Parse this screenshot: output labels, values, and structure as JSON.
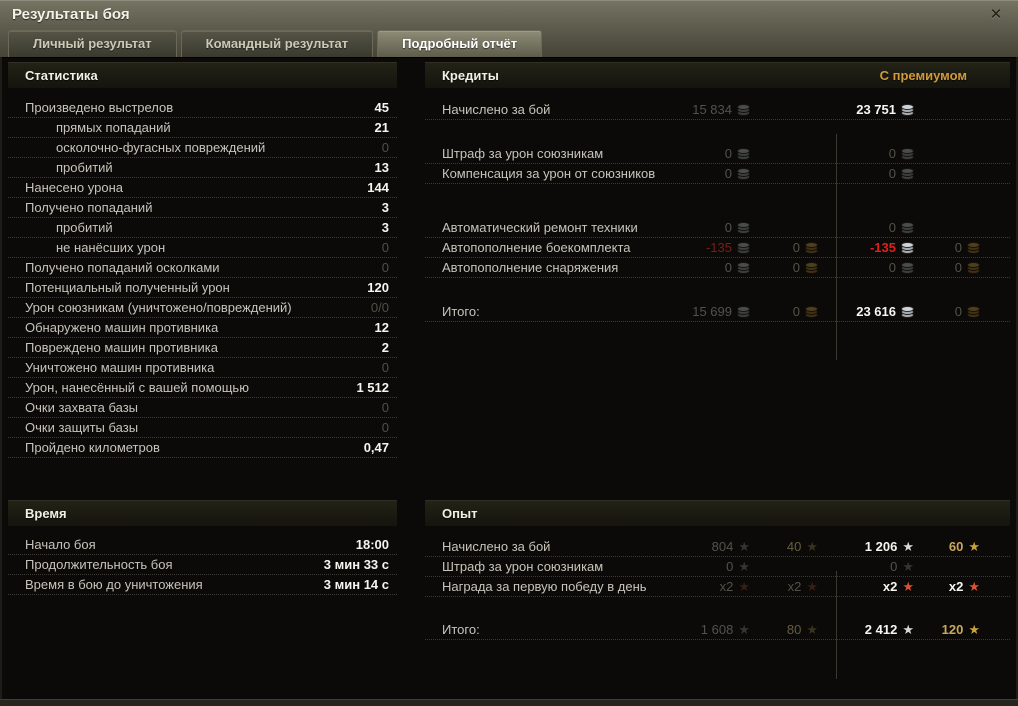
{
  "window": {
    "title": "Результаты боя",
    "close_icon": "✕"
  },
  "tabs": [
    {
      "label": "Личный результат",
      "active": false
    },
    {
      "label": "Командный результат",
      "active": false
    },
    {
      "label": "Подробный отчёт",
      "active": true
    }
  ],
  "colors": {
    "premium_gold": "#d29a3a",
    "negative_red": "#e0211a",
    "credits_silver": "#ced4d7",
    "gold_coin": "#dcae44",
    "free_xp_gold": "#c9a23e",
    "daily_star_red": "#d75432"
  },
  "stats": {
    "title": "Статистика",
    "rows": [
      {
        "label": "Произведено выстрелов",
        "value": "45"
      },
      {
        "label": "прямых попаданий",
        "value": "21"
      },
      {
        "label": "осколочно-фугасных повреждений",
        "value": "0"
      },
      {
        "label": "пробитий",
        "value": "13"
      },
      {
        "label": "Нанесено урона",
        "value": "144"
      },
      {
        "label": "Получено попаданий",
        "value": "3"
      },
      {
        "label": "пробитий",
        "value": "3"
      },
      {
        "label": "не нанёсших урон",
        "value": "0"
      },
      {
        "label": "Получено попаданий осколками",
        "value": "0"
      },
      {
        "label": "Потенциальный полученный урон",
        "value": "120"
      },
      {
        "label": "Урон союзникам (уничтожено/повреждений)",
        "value": "0/0"
      },
      {
        "label": "Обнаружено машин противника",
        "value": "12"
      },
      {
        "label": "Повреждено машин противника",
        "value": "2"
      },
      {
        "label": "Уничтожено машин противника",
        "value": "0"
      },
      {
        "label": "Урон, нанесённый с вашей помощью",
        "value": "1 512"
      },
      {
        "label": "Очки захвата базы",
        "value": "0"
      },
      {
        "label": "Очки защиты базы",
        "value": "0"
      },
      {
        "label": "Пройдено километров",
        "value": "0,47"
      }
    ]
  },
  "credits": {
    "title": "Кредиты",
    "premium_label": "С премиумом",
    "rows": [
      {
        "label": "Начислено за бой",
        "base_credits": "15 834",
        "prem_credits": "23 751"
      },
      {
        "label": "Штраф за урон союзникам",
        "base_credits": "0",
        "prem_credits": "0"
      },
      {
        "label": "Компенсация за урон от союзников",
        "base_credits": "0",
        "prem_credits": "0"
      },
      {
        "label": "Автоматический ремонт техники",
        "base_credits": "0",
        "prem_credits": "0"
      },
      {
        "label": "Автопополнение боекомплекта",
        "base_credits": "-135",
        "base_gold": "0",
        "prem_credits": "-135",
        "prem_gold": "0"
      },
      {
        "label": "Автопополнение снаряжения",
        "base_credits": "0",
        "base_gold": "0",
        "prem_credits": "0",
        "prem_gold": "0"
      },
      {
        "label": "Итого:",
        "base_credits": "15 699",
        "base_gold": "0",
        "prem_credits": "23 616",
        "prem_gold": "0"
      }
    ]
  },
  "time": {
    "title": "Время",
    "rows": [
      {
        "label": "Начало боя",
        "value": "18:00"
      },
      {
        "label": "Продолжительность боя",
        "value": "3 мин 33 с"
      },
      {
        "label": "Время в бою до уничтожения",
        "value": "3 мин 14 с"
      }
    ]
  },
  "xp": {
    "title": "Опыт",
    "rows": [
      {
        "label": "Начислено за бой",
        "base_xp": "804",
        "base_free_xp": "40",
        "prem_xp": "1 206",
        "prem_free_xp": "60"
      },
      {
        "label": "Штраф за урон союзникам",
        "base_xp": "0",
        "prem_xp": "0"
      },
      {
        "label": "Награда за первую победу в день",
        "base_xp": "x2",
        "base_free_xp": "x2",
        "prem_xp": "x2",
        "prem_free_xp": "x2"
      },
      {
        "label": "Итого:",
        "base_xp": "1 608",
        "base_free_xp": "80",
        "prem_xp": "2 412",
        "prem_free_xp": "120"
      }
    ]
  },
  "star_glyph": "★"
}
